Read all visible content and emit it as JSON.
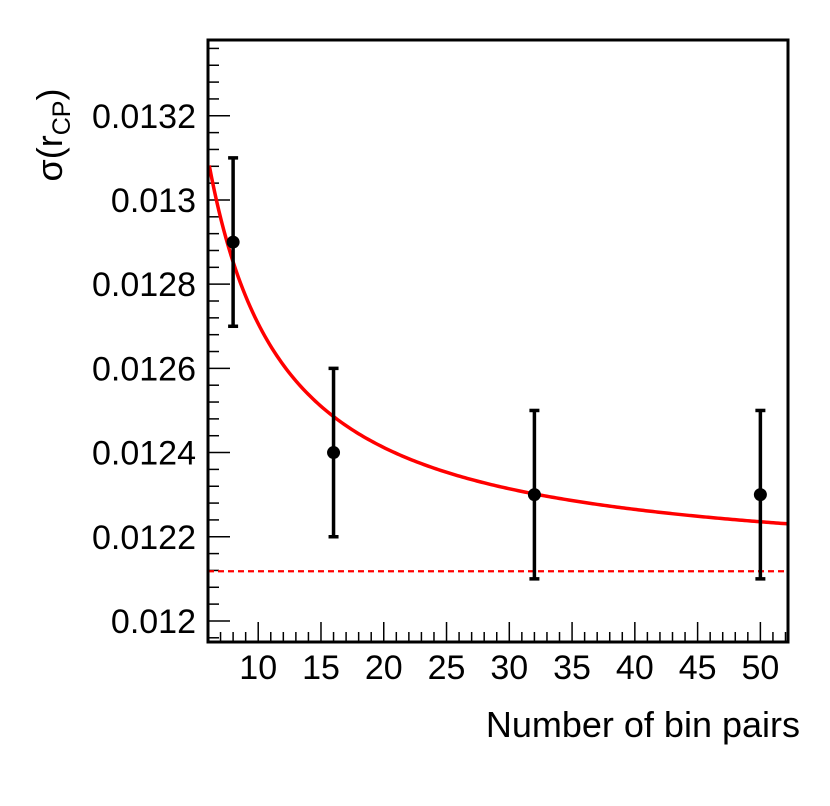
{
  "chart_data": {
    "type": "scatter",
    "title": "",
    "xlabel": "Number of bin pairs",
    "ylabel": {
      "main": "σ(r",
      "subscript": "CP",
      "close": ")"
    },
    "xlim": [
      6,
      52.2
    ],
    "ylim": [
      0.01195,
      0.01338
    ],
    "xticks": [
      10,
      15,
      20,
      25,
      30,
      35,
      40,
      45,
      50
    ],
    "xtick_labels": [
      "10",
      "15",
      "20",
      "25",
      "30",
      "35",
      "40",
      "45",
      "50"
    ],
    "yticks": [
      0.012,
      0.0122,
      0.0124,
      0.0126,
      0.0128,
      0.013,
      0.0132
    ],
    "ytick_labels": [
      "0.012",
      "0.0122",
      "0.0124",
      "0.0126",
      "0.0128",
      "0.013",
      "0.0132"
    ],
    "grid": false,
    "series": [
      {
        "kind": "points_with_errors",
        "color": "#000000",
        "x": [
          8,
          16,
          32,
          50
        ],
        "y": [
          0.0129,
          0.0124,
          0.0123,
          0.0123
        ],
        "yerr": [
          0.0002,
          0.0002,
          0.0002,
          0.0002
        ]
      },
      {
        "kind": "fit_curve",
        "color": "#ff0000",
        "style": "solid",
        "function": "a + b/x",
        "a": 0.012118,
        "b": 0.00588,
        "x_range": [
          6.1,
          52.2
        ]
      },
      {
        "kind": "asymptote",
        "color": "#ff0000",
        "style": "dashed",
        "y": 0.012118
      }
    ]
  }
}
